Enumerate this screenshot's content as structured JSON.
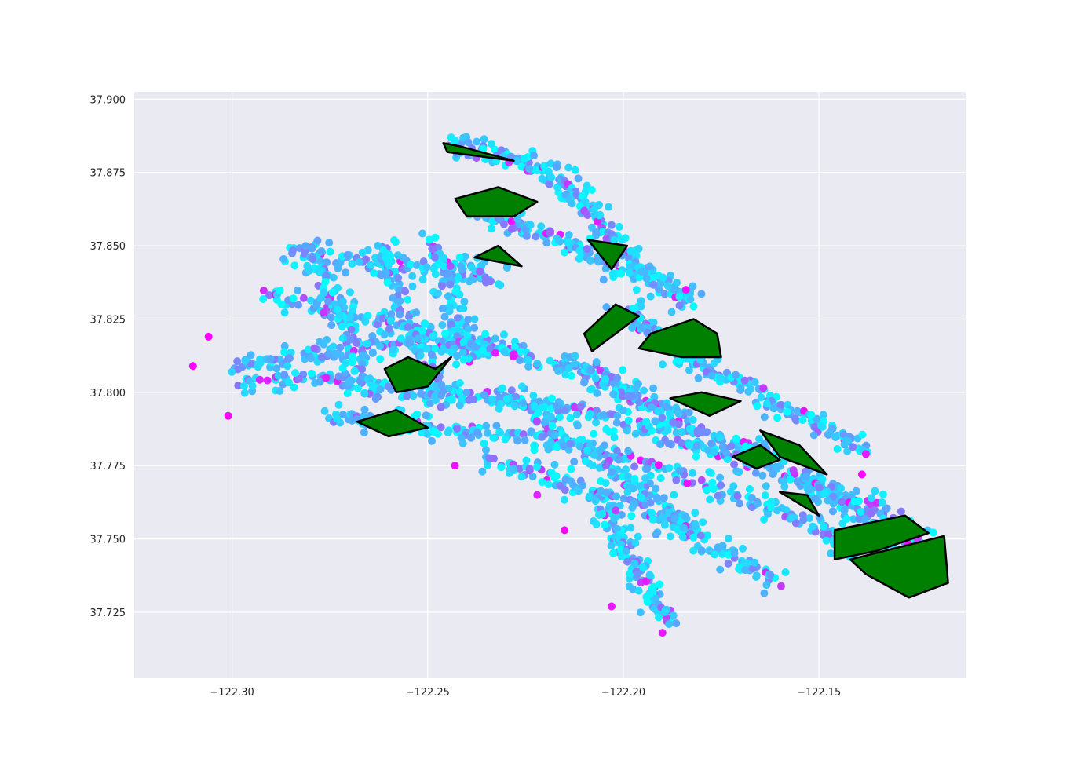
{
  "chart_data": {
    "type": "scatter",
    "title": "",
    "xlabel": "",
    "ylabel": "",
    "xlim": [
      -122.325,
      -122.1125
    ],
    "ylim": [
      37.7025,
      37.9025
    ],
    "grid": true,
    "legend": "none",
    "background_color": "#eaeaf2",
    "grid_color": "#ffffff",
    "x_ticks": [
      -122.3,
      -122.25,
      -122.2,
      -122.15
    ],
    "x_tick_labels": [
      "−122.30",
      "−122.25",
      "−122.20",
      "−122.15"
    ],
    "y_ticks": [
      37.725,
      37.75,
      37.775,
      37.8,
      37.825,
      37.85,
      37.875,
      37.9
    ],
    "y_tick_labels": [
      "37.725",
      "37.750",
      "37.775",
      "37.800",
      "37.825",
      "37.850",
      "37.875",
      "37.900"
    ],
    "colormap": [
      "#00ffff",
      "#ff00ff"
    ],
    "point_colors_note": "cool colormap",
    "park_fill": "#008000",
    "park_stroke": "#000000",
    "scatter_tracks": [
      [
        [
          -122.3,
          37.809
        ],
        [
          -122.285,
          37.812
        ],
        [
          -122.27,
          37.815
        ],
        [
          -122.255,
          37.816
        ],
        [
          -122.24,
          37.817
        ],
        [
          -122.225,
          37.815
        ]
      ],
      [
        [
          -122.297,
          37.803
        ],
        [
          -122.28,
          37.805
        ],
        [
          -122.265,
          37.803
        ],
        [
          -122.25,
          37.8
        ],
        [
          -122.235,
          37.799
        ],
        [
          -122.22,
          37.796
        ],
        [
          -122.205,
          37.792
        ],
        [
          -122.19,
          37.786
        ],
        [
          -122.175,
          37.779
        ],
        [
          -122.16,
          37.772
        ],
        [
          -122.145,
          37.765
        ],
        [
          -122.13,
          37.758
        ]
      ],
      [
        [
          -122.29,
          37.833
        ],
        [
          -122.275,
          37.828
        ],
        [
          -122.26,
          37.823
        ],
        [
          -122.245,
          37.818
        ],
        [
          -122.23,
          37.814
        ],
        [
          -122.215,
          37.808
        ],
        [
          -122.2,
          37.8
        ],
        [
          -122.185,
          37.792
        ]
      ],
      [
        [
          -122.285,
          37.848
        ],
        [
          -122.27,
          37.845
        ],
        [
          -122.255,
          37.843
        ],
        [
          -122.24,
          37.842
        ],
        [
          -122.232,
          37.838
        ]
      ],
      [
        [
          -122.28,
          37.85
        ],
        [
          -122.276,
          37.838
        ],
        [
          -122.272,
          37.826
        ],
        [
          -122.268,
          37.812
        ],
        [
          -122.264,
          37.798
        ]
      ],
      [
        [
          -122.262,
          37.85
        ],
        [
          -122.258,
          37.836
        ],
        [
          -122.254,
          37.822
        ],
        [
          -122.25,
          37.808
        ],
        [
          -122.246,
          37.794
        ]
      ],
      [
        [
          -122.248,
          37.852
        ],
        [
          -122.245,
          37.838
        ],
        [
          -122.242,
          37.824
        ],
        [
          -122.239,
          37.81
        ]
      ],
      [
        [
          -122.245,
          37.884
        ],
        [
          -122.232,
          37.881
        ],
        [
          -122.222,
          37.876
        ],
        [
          -122.214,
          37.87
        ],
        [
          -122.208,
          37.862
        ],
        [
          -122.202,
          37.852
        ],
        [
          -122.196,
          37.843
        ],
        [
          -122.189,
          37.836
        ],
        [
          -122.183,
          37.83
        ]
      ],
      [
        [
          -122.24,
          37.864
        ],
        [
          -122.23,
          37.858
        ],
        [
          -122.22,
          37.854
        ],
        [
          -122.21,
          37.848
        ],
        [
          -122.2,
          37.842
        ],
        [
          -122.19,
          37.838
        ]
      ],
      [
        [
          -122.24,
          37.787
        ],
        [
          -122.225,
          37.785
        ],
        [
          -122.21,
          37.782
        ],
        [
          -122.195,
          37.776
        ],
        [
          -122.18,
          37.769
        ],
        [
          -122.165,
          37.762
        ],
        [
          -122.15,
          37.753
        ],
        [
          -122.14,
          37.745
        ]
      ],
      [
        [
          -122.235,
          37.777
        ],
        [
          -122.222,
          37.772
        ],
        [
          -122.208,
          37.766
        ],
        [
          -122.195,
          37.76
        ],
        [
          -122.182,
          37.751
        ],
        [
          -122.17,
          37.742
        ],
        [
          -122.16,
          37.735
        ]
      ],
      [
        [
          -122.205,
          37.76
        ],
        [
          -122.2,
          37.75
        ],
        [
          -122.196,
          37.74
        ],
        [
          -122.192,
          37.73
        ],
        [
          -122.188,
          37.722
        ]
      ],
      [
        [
          -122.23,
          37.8
        ],
        [
          -122.22,
          37.79
        ],
        [
          -122.21,
          37.78
        ],
        [
          -122.2,
          37.77
        ],
        [
          -122.19,
          37.762
        ],
        [
          -122.18,
          37.752
        ]
      ],
      [
        [
          -122.215,
          37.812
        ],
        [
          -122.205,
          37.805
        ],
        [
          -122.195,
          37.796
        ],
        [
          -122.185,
          37.788
        ],
        [
          -122.172,
          37.782
        ],
        [
          -122.16,
          37.778
        ]
      ],
      [
        [
          -122.2,
          37.828
        ],
        [
          -122.192,
          37.82
        ],
        [
          -122.184,
          37.812
        ],
        [
          -122.175,
          37.806
        ],
        [
          -122.165,
          37.801
        ]
      ],
      [
        [
          -122.165,
          37.798
        ],
        [
          -122.155,
          37.792
        ],
        [
          -122.145,
          37.786
        ],
        [
          -122.138,
          37.78
        ]
      ],
      [
        [
          -122.155,
          37.772
        ],
        [
          -122.148,
          37.766
        ],
        [
          -122.14,
          37.76
        ],
        [
          -122.132,
          37.752
        ],
        [
          -122.124,
          37.748
        ]
      ],
      [
        [
          -122.275,
          37.792
        ],
        [
          -122.262,
          37.79
        ],
        [
          -122.25,
          37.788
        ],
        [
          -122.238,
          37.785
        ]
      ]
    ],
    "scatter_outliers": [
      [
        -122.31,
        37.809
      ],
      [
        -122.306,
        37.819
      ],
      [
        -122.301,
        37.792
      ],
      [
        -122.243,
        37.775
      ],
      [
        -122.222,
        37.765
      ],
      [
        -122.215,
        37.753
      ],
      [
        -122.203,
        37.727
      ],
      [
        -122.19,
        37.718
      ],
      [
        -122.228,
        37.813
      ],
      [
        -122.184,
        37.835
      ],
      [
        -122.139,
        37.772
      ],
      [
        -122.138,
        37.779
      ]
    ],
    "parks": [
      [
        [
          -122.261,
          37.808
        ],
        [
          -122.255,
          37.812
        ],
        [
          -122.248,
          37.808
        ],
        [
          -122.244,
          37.812
        ],
        [
          -122.25,
          37.802
        ],
        [
          -122.258,
          37.8
        ]
      ],
      [
        [
          -122.268,
          37.79
        ],
        [
          -122.258,
          37.794
        ],
        [
          -122.25,
          37.788
        ],
        [
          -122.26,
          37.785
        ]
      ],
      [
        [
          -122.243,
          37.866
        ],
        [
          -122.232,
          37.87
        ],
        [
          -122.222,
          37.865
        ],
        [
          -122.228,
          37.86
        ],
        [
          -122.24,
          37.86
        ]
      ],
      [
        [
          -122.246,
          37.885
        ],
        [
          -122.242,
          37.884
        ],
        [
          -122.228,
          37.879
        ],
        [
          -122.245,
          37.882
        ]
      ],
      [
        [
          -122.21,
          37.82
        ],
        [
          -122.202,
          37.83
        ],
        [
          -122.196,
          37.826
        ],
        [
          -122.208,
          37.814
        ]
      ],
      [
        [
          -122.193,
          37.82
        ],
        [
          -122.182,
          37.825
        ],
        [
          -122.176,
          37.82
        ],
        [
          -122.175,
          37.812
        ],
        [
          -122.185,
          37.812
        ],
        [
          -122.196,
          37.815
        ]
      ],
      [
        [
          -122.209,
          37.852
        ],
        [
          -122.199,
          37.85
        ],
        [
          -122.203,
          37.842
        ]
      ],
      [
        [
          -122.165,
          37.787
        ],
        [
          -122.155,
          37.782
        ],
        [
          -122.148,
          37.772
        ],
        [
          -122.16,
          37.778
        ]
      ],
      [
        [
          -122.172,
          37.778
        ],
        [
          -122.165,
          37.782
        ],
        [
          -122.16,
          37.777
        ],
        [
          -122.166,
          37.774
        ]
      ],
      [
        [
          -122.16,
          37.766
        ],
        [
          -122.153,
          37.765
        ],
        [
          -122.15,
          37.758
        ]
      ],
      [
        [
          -122.146,
          37.753
        ],
        [
          -122.128,
          37.758
        ],
        [
          -122.122,
          37.752
        ],
        [
          -122.135,
          37.746
        ],
        [
          -122.146,
          37.743
        ]
      ],
      [
        [
          -122.142,
          37.743
        ],
        [
          -122.118,
          37.751
        ],
        [
          -122.117,
          37.735
        ],
        [
          -122.127,
          37.73
        ],
        [
          -122.138,
          37.738
        ]
      ],
      [
        [
          -122.238,
          37.846
        ],
        [
          -122.232,
          37.85
        ],
        [
          -122.226,
          37.843
        ]
      ],
      [
        [
          -122.188,
          37.798
        ],
        [
          -122.18,
          37.8
        ],
        [
          -122.17,
          37.797
        ],
        [
          -122.178,
          37.792
        ]
      ]
    ]
  }
}
